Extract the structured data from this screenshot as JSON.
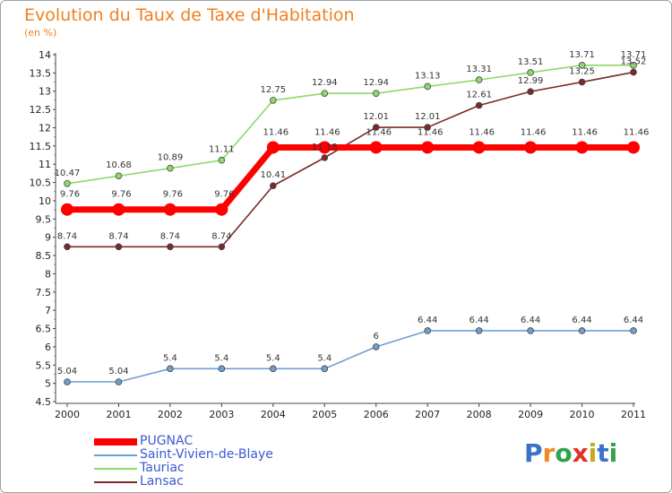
{
  "title": "Evolution du Taux de Taxe d'Habitation",
  "subtitle": "(en %)",
  "brand": {
    "letters": [
      "P",
      "r",
      "o",
      "x",
      "i",
      "t",
      "i"
    ],
    "colors": [
      "#3a72c8",
      "#f08a24",
      "#2ea44a",
      "#e0322a",
      "#c8a81e",
      "#3a72c8",
      "#2ea44a"
    ]
  },
  "chart_data": {
    "type": "line",
    "title": "Evolution du Taux de Taxe d'Habitation",
    "subtitle": "(en %)",
    "xlabel": "",
    "ylabel": "(en %)",
    "x": [
      "2000",
      "2001",
      "2002",
      "2003",
      "2004",
      "2005",
      "2006",
      "2007",
      "2008",
      "2009",
      "2010",
      "2011"
    ],
    "ylim": [
      4.5,
      14
    ],
    "y_ticks": [
      "4.5",
      "5",
      "5.5",
      "6",
      "6.5",
      "7",
      "7.5",
      "8",
      "8.5",
      "9",
      "9.5",
      "10",
      "10.5",
      "11",
      "11.5",
      "12",
      "12.5",
      "13",
      "13.5",
      "14"
    ],
    "grid": false,
    "legend_position": "bottom-left",
    "series": [
      {
        "name": "PUGNAC",
        "color": "#ff0000",
        "values": [
          9.76,
          9.76,
          9.76,
          9.76,
          11.46,
          11.46,
          11.46,
          11.46,
          11.46,
          11.46,
          11.46,
          11.46
        ],
        "labels": [
          "9.76",
          "9.76",
          "9.76",
          "9.76",
          "11.46",
          "11.46",
          "11.46",
          "11.46",
          "11.46",
          "11.46",
          "11.46",
          "11.46"
        ]
      },
      {
        "name": "Saint-Vivien-de-Blaye",
        "color": "#6f9fcf",
        "values": [
          5.04,
          5.04,
          5.4,
          5.4,
          5.4,
          5.4,
          6,
          6.44,
          6.44,
          6.44,
          6.44,
          6.44
        ],
        "labels": [
          "5.04",
          "5.04",
          "5.4",
          "5.4",
          "5.4",
          "5.4",
          "6",
          "6.44",
          "6.44",
          "6.44",
          "6.44",
          "6.44"
        ]
      },
      {
        "name": "Tauriac",
        "color": "#8fd86a",
        "values": [
          10.47,
          10.68,
          10.89,
          11.11,
          12.75,
          12.94,
          12.94,
          13.13,
          13.31,
          13.51,
          13.71,
          13.71
        ],
        "labels": [
          "10.47",
          "10.68",
          "10.89",
          "11.11",
          "12.75",
          "12.94",
          "12.94",
          "13.13",
          "13.31",
          "13.51",
          "13.71",
          "13.71"
        ]
      },
      {
        "name": "Lansac",
        "color": "#7a2a2a",
        "values": [
          8.74,
          8.74,
          8.74,
          8.74,
          10.41,
          11.18,
          12.01,
          12.01,
          12.61,
          12.99,
          13.25,
          13.52
        ],
        "labels": [
          "8.74",
          "8.74",
          "8.74",
          "8.74",
          "10.41",
          "11.18",
          "12.01",
          "12.01",
          "12.61",
          "12.99",
          "13.25",
          "13.52"
        ]
      }
    ]
  }
}
